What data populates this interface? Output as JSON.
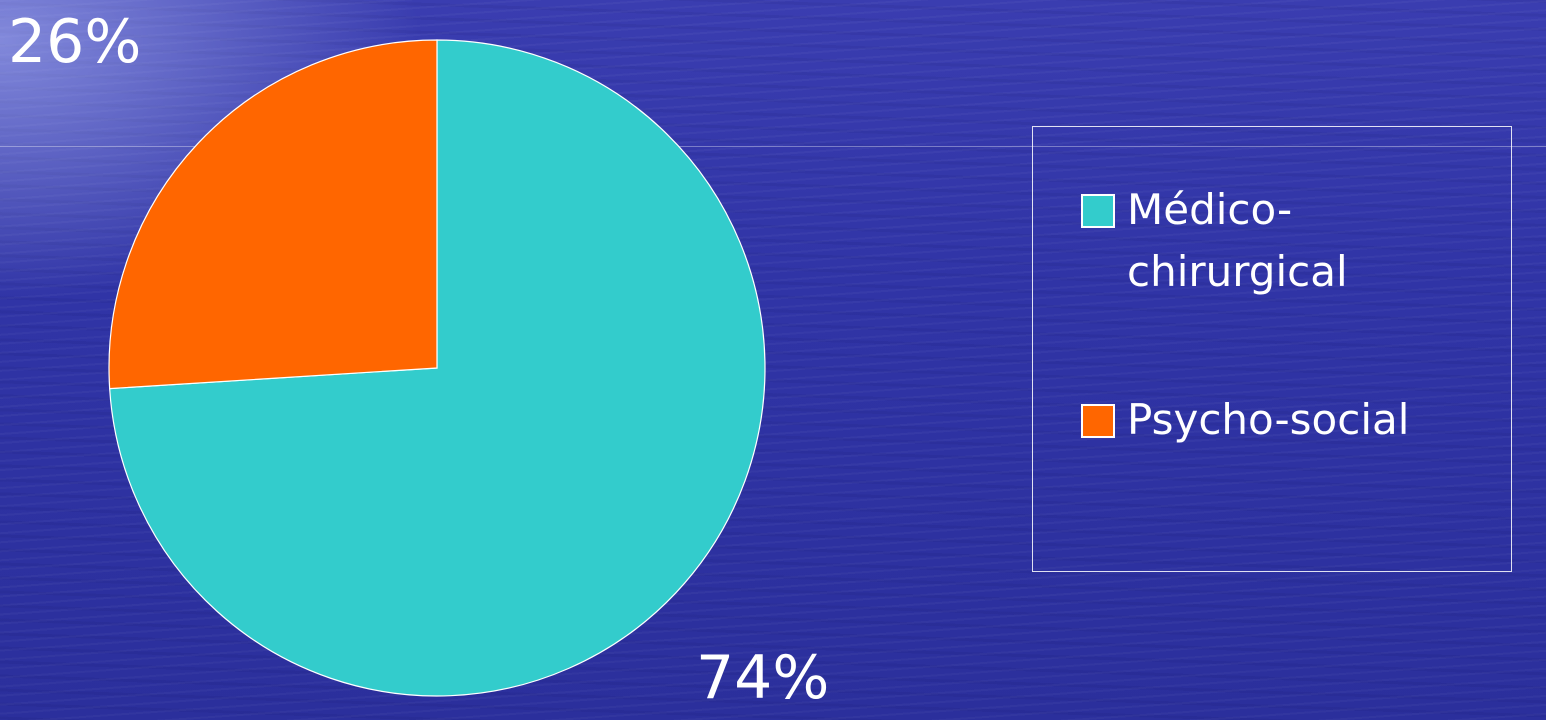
{
  "chart_data": {
    "type": "pie",
    "slices": [
      {
        "label": "Médico-chirurgical",
        "value": 74,
        "data_label": "74%",
        "color": "#33CCCC"
      },
      {
        "label": "Psycho-social",
        "value": 26,
        "data_label": "26%",
        "color": "#FF6600"
      }
    ],
    "legend": {
      "placement": "right",
      "entries": [
        "Médico-\nchirurgical",
        "Psycho-social"
      ]
    }
  },
  "colors": {
    "background": "#3034A6",
    "text": "#FFFFFF",
    "slice_border": "#FFFFFF"
  }
}
